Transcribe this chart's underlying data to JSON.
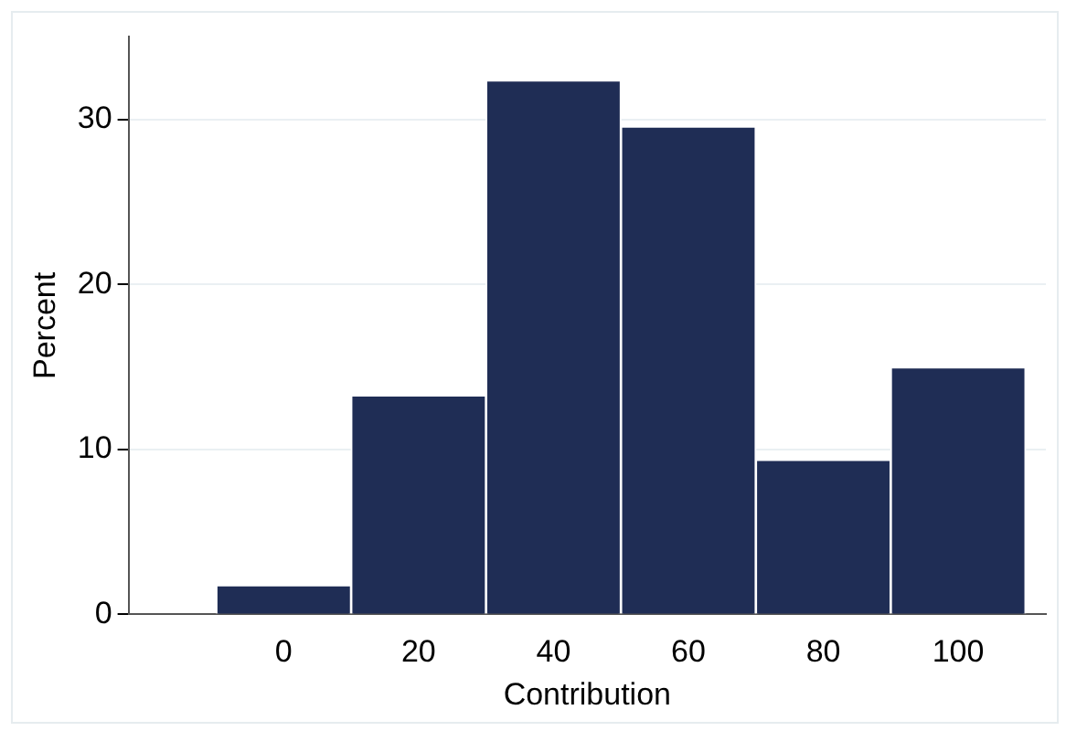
{
  "chart_data": {
    "type": "histogram",
    "xlabel": "Contribution",
    "ylabel": "Percent",
    "bins": [
      -10,
      10,
      30,
      50,
      70,
      90,
      110
    ],
    "values": [
      1.7,
      13.2,
      32.3,
      29.5,
      9.3,
      14.9
    ],
    "color": "#1f2d55",
    "xlim": [
      -23,
      113
    ],
    "xticks": [
      0,
      20,
      40,
      60,
      80,
      100
    ],
    "ylim": [
      0,
      35
    ],
    "yticks": [
      0,
      10,
      20,
      30
    ],
    "grid": "y",
    "legend": false
  }
}
